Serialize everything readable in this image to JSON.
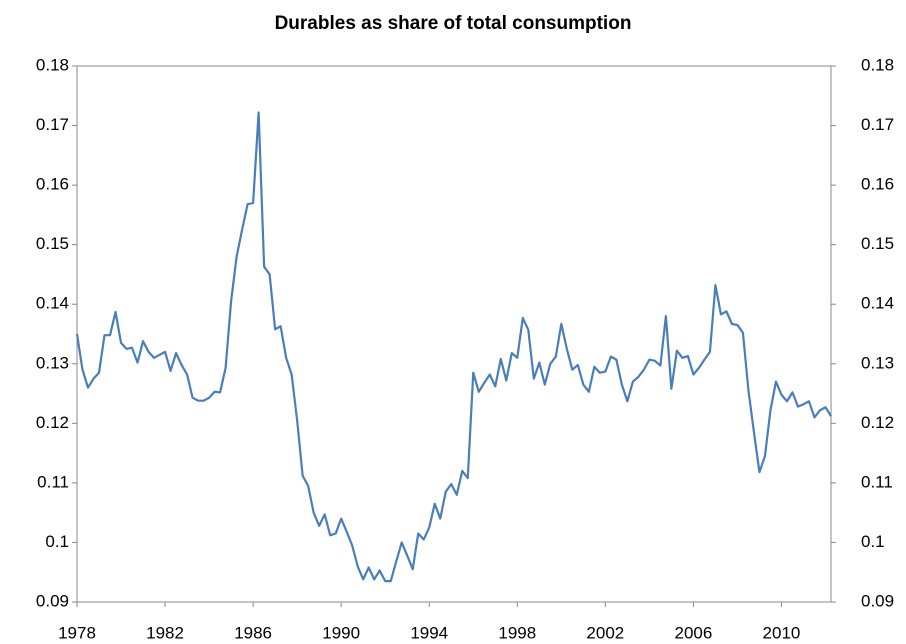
{
  "chart_data": {
    "type": "line",
    "title": "Durables as share of total consumption",
    "x": [
      1978,
      1978.25,
      1978.5,
      1978.75,
      1979,
      1979.25,
      1979.5,
      1979.75,
      1980,
      1980.25,
      1980.5,
      1980.75,
      1981,
      1981.25,
      1981.5,
      1981.75,
      1982,
      1982.25,
      1982.5,
      1982.75,
      1983,
      1983.25,
      1983.5,
      1983.75,
      1984,
      1984.25,
      1984.5,
      1984.75,
      1985,
      1985.25,
      1985.5,
      1985.75,
      1986,
      1986.25,
      1986.5,
      1986.75,
      1987,
      1987.25,
      1987.5,
      1987.75,
      1988,
      1988.25,
      1988.5,
      1988.75,
      1989,
      1989.25,
      1989.5,
      1989.75,
      1990,
      1990.25,
      1990.5,
      1990.75,
      1991,
      1991.25,
      1991.5,
      1991.75,
      1992,
      1992.25,
      1992.5,
      1992.75,
      1993,
      1993.25,
      1993.5,
      1993.75,
      1994,
      1994.25,
      1994.5,
      1994.75,
      1995,
      1995.25,
      1995.5,
      1995.75,
      1996,
      1996.25,
      1996.5,
      1996.75,
      1997,
      1997.25,
      1997.5,
      1997.75,
      1998,
      1998.25,
      1998.5,
      1998.75,
      1999,
      1999.25,
      1999.5,
      1999.75,
      2000,
      2000.25,
      2000.5,
      2000.75,
      2001,
      2001.25,
      2001.5,
      2001.75,
      2002,
      2002.25,
      2002.5,
      2002.75,
      2003,
      2003.25,
      2003.5,
      2003.75,
      2004,
      2004.25,
      2004.5,
      2004.75,
      2005,
      2005.25,
      2005.5,
      2005.75,
      2006,
      2006.25,
      2006.5,
      2006.75,
      2007,
      2007.25,
      2007.5,
      2007.75,
      2008,
      2008.25,
      2008.5,
      2008.75,
      2009,
      2009.25,
      2009.5,
      2009.75,
      2010,
      2010.25,
      2010.5,
      2010.75,
      2011,
      2011.25,
      2011.5,
      2011.75,
      2012,
      2012.25
    ],
    "series": [
      {
        "color": "#4a7ebb",
        "values": [
          0.135,
          0.129,
          0.126,
          0.1275,
          0.1285,
          0.1348,
          0.1348,
          0.1387,
          0.1335,
          0.1325,
          0.1327,
          0.1302,
          0.1338,
          0.132,
          0.131,
          0.1315,
          0.132,
          0.1288,
          0.1318,
          0.1298,
          0.1282,
          0.1243,
          0.1238,
          0.1238,
          0.1243,
          0.1253,
          0.1252,
          0.1293,
          0.1405,
          0.148,
          0.1525,
          0.1568,
          0.157,
          0.1722,
          0.1463,
          0.145,
          0.1358,
          0.1363,
          0.131,
          0.1282,
          0.1205,
          0.1112,
          0.1095,
          0.105,
          0.1028,
          0.1047,
          0.1012,
          0.1015,
          0.104,
          0.1018,
          0.0995,
          0.096,
          0.0938,
          0.0958,
          0.0938,
          0.0953,
          0.0935,
          0.0935,
          0.0968,
          0.1,
          0.0978,
          0.0955,
          0.1015,
          0.1005,
          0.1025,
          0.1065,
          0.104,
          0.1085,
          0.1098,
          0.108,
          0.112,
          0.1108,
          0.1285,
          0.1253,
          0.1268,
          0.1282,
          0.1262,
          0.1308,
          0.1272,
          0.1318,
          0.131,
          0.1377,
          0.1357,
          0.1275,
          0.1302,
          0.1265,
          0.13,
          0.1312,
          0.1367,
          0.1325,
          0.129,
          0.1298,
          0.1265,
          0.1253,
          0.1295,
          0.1285,
          0.1287,
          0.1312,
          0.1307,
          0.1265,
          0.1237,
          0.127,
          0.1278,
          0.129,
          0.1307,
          0.1305,
          0.1297,
          0.138,
          0.1258,
          0.1322,
          0.131,
          0.1313,
          0.1282,
          0.1293,
          0.1307,
          0.132,
          0.1432,
          0.1383,
          0.1388,
          0.1367,
          0.1365,
          0.1352,
          0.1255,
          0.1185,
          0.1118,
          0.1145,
          0.1222,
          0.127,
          0.1248,
          0.1237,
          0.1252,
          0.1228,
          0.1232,
          0.1237,
          0.121,
          0.1222,
          0.1227,
          0.1212
        ]
      }
    ],
    "xlim": [
      1978,
      2012.25
    ],
    "xticks": [
      1978,
      1982,
      1986,
      1990,
      1994,
      1998,
      2002,
      2006,
      2010
    ],
    "ylim": [
      0.09,
      0.18
    ],
    "yticks": [
      0.09,
      0.1,
      0.11,
      0.12,
      0.13,
      0.14,
      0.15,
      0.16,
      0.17,
      0.18
    ],
    "y2lim": [
      0.09,
      0.18
    ],
    "y2ticks": [
      0.09,
      0.1,
      0.11,
      0.12,
      0.13,
      0.14,
      0.15,
      0.16,
      0.17,
      0.18
    ],
    "grid": false
  }
}
